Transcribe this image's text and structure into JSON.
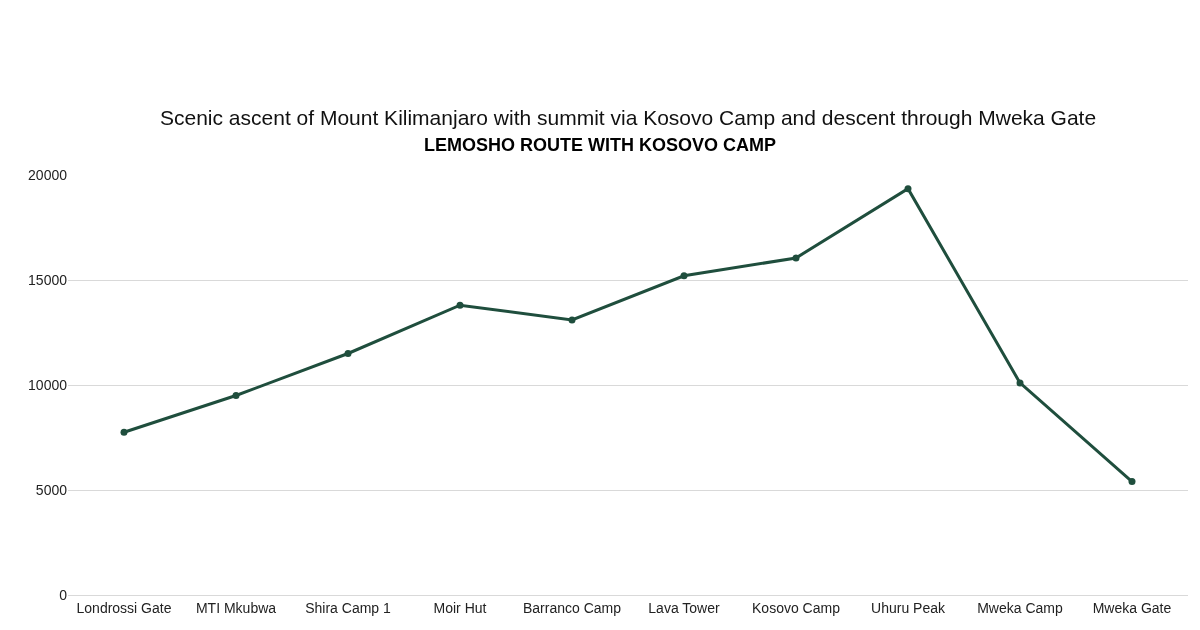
{
  "chart_data": {
    "type": "line",
    "title": "LEMOSHO ROUTE WITH KOSOVO CAMP",
    "subtitle": "Scenic ascent of Mount Kilimanjaro with summit via Kosovo Camp and descent through Mweka Gate",
    "categories": [
      "Londrossi Gate",
      "MTI Mkubwa",
      "Shira Camp 1",
      "Moir Hut",
      "Barranco Camp",
      "Lava Tower",
      "Kosovo Camp",
      "Uhuru Peak",
      "Mweka Camp",
      "Mweka Gate"
    ],
    "series": [
      {
        "color": "#1f4e3d",
        "values": [
          7750,
          9500,
          11500,
          13800,
          13100,
          15200,
          16050,
          19350,
          10100,
          5400
        ]
      }
    ],
    "ylim": [
      0,
      20000
    ],
    "yticks": [
      0,
      5000,
      10000,
      15000,
      20000
    ],
    "grid": "y",
    "marker": "circle",
    "line_style": "solid"
  }
}
